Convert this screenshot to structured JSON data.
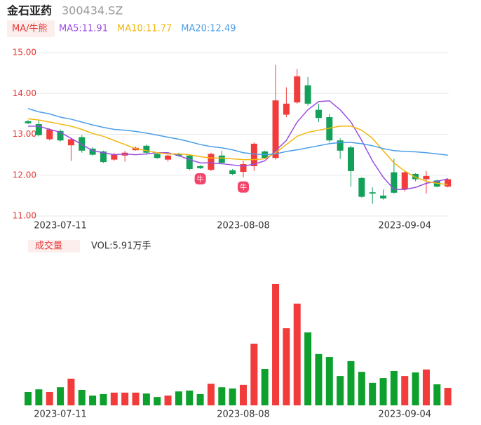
{
  "header": {
    "name": "金石亚药",
    "code": "300434.SZ"
  },
  "chart_data": [
    {
      "type": "candlestick",
      "legend_button": "MA/牛熊",
      "categories": [
        null,
        null,
        null,
        "2023-07-11",
        null,
        null,
        null,
        null,
        null,
        null,
        null,
        null,
        null,
        null,
        null,
        null,
        null,
        null,
        null,
        null,
        "2023-08-08",
        null,
        null,
        null,
        null,
        null,
        null,
        null,
        null,
        null,
        null,
        null,
        null,
        null,
        null,
        "2023-09-04",
        null,
        null,
        null,
        null
      ],
      "open": [
        13.32,
        13.25,
        12.88,
        13.08,
        12.73,
        12.93,
        12.65,
        12.58,
        12.38,
        12.48,
        12.61,
        12.72,
        12.52,
        12.38,
        12.52,
        12.48,
        12.22,
        12.13,
        12.48,
        12.12,
        12.08,
        12.22,
        12.58,
        12.42,
        13.48,
        13.78,
        14.2,
        13.6,
        13.42,
        12.85,
        12.68,
        11.93,
        11.58,
        11.5,
        12.07,
        11.65,
        12.03,
        11.9,
        11.87,
        11.72
      ],
      "high": [
        13.35,
        13.35,
        13.15,
        13.12,
        12.9,
        12.98,
        12.68,
        12.6,
        12.55,
        12.6,
        12.7,
        12.75,
        12.55,
        12.5,
        12.55,
        12.5,
        12.25,
        12.55,
        12.6,
        12.15,
        12.35,
        12.8,
        12.6,
        14.7,
        14.15,
        14.6,
        14.4,
        13.75,
        13.5,
        12.9,
        12.72,
        11.95,
        11.7,
        11.65,
        12.4,
        12.1,
        12.05,
        12.1,
        11.9,
        11.92
      ],
      "low": [
        13.25,
        12.95,
        12.85,
        12.82,
        12.35,
        12.55,
        12.48,
        12.3,
        12.35,
        12.33,
        12.6,
        12.5,
        12.4,
        12.33,
        12.45,
        12.12,
        12.15,
        12.1,
        12.28,
        12.0,
        11.95,
        12.1,
        12.4,
        12.38,
        13.42,
        13.75,
        13.7,
        13.3,
        12.8,
        12.4,
        11.72,
        11.45,
        11.3,
        11.4,
        11.55,
        11.6,
        11.85,
        11.55,
        11.7,
        11.7
      ],
      "close": [
        13.27,
        12.98,
        13.12,
        12.85,
        12.88,
        12.6,
        12.5,
        12.32,
        12.5,
        12.55,
        12.67,
        12.55,
        12.42,
        12.48,
        12.47,
        12.15,
        12.17,
        12.52,
        12.3,
        12.03,
        12.27,
        12.77,
        12.42,
        13.83,
        13.75,
        14.42,
        13.75,
        13.4,
        12.85,
        12.6,
        12.1,
        11.47,
        11.55,
        11.43,
        11.57,
        12.07,
        11.9,
        11.98,
        11.72,
        11.9
      ],
      "up_color": "#f23b3b",
      "down_color": "#13a05a",
      "series": [
        {
          "name": "MA5:11.91",
          "color": "#9b4de2",
          "values": [
            13.2,
            13.2,
            13.12,
            13.05,
            12.9,
            12.75,
            12.6,
            12.55,
            12.5,
            12.52,
            12.5,
            12.52,
            12.55,
            12.55,
            12.48,
            12.38,
            12.3,
            12.3,
            12.28,
            12.25,
            12.22,
            12.27,
            12.35,
            12.6,
            12.85,
            13.3,
            13.6,
            13.8,
            13.82,
            13.6,
            13.3,
            12.85,
            12.35,
            11.95,
            11.65,
            11.65,
            11.7,
            11.8,
            11.85,
            11.91
          ]
        },
        {
          "name": "MA10:11.77",
          "color": "#f2b70f",
          "values": [
            13.38,
            13.35,
            13.3,
            13.25,
            13.2,
            13.12,
            13.02,
            12.95,
            12.85,
            12.75,
            12.65,
            12.6,
            12.55,
            12.52,
            12.52,
            12.5,
            12.45,
            12.42,
            12.42,
            12.4,
            12.38,
            12.38,
            12.4,
            12.55,
            12.75,
            12.95,
            13.05,
            13.1,
            13.15,
            13.2,
            13.2,
            13.1,
            12.9,
            12.6,
            12.3,
            12.1,
            11.95,
            11.85,
            11.8,
            11.77
          ]
        },
        {
          "name": "MA20:12.49",
          "color": "#4a9ee8",
          "values": [
            13.63,
            13.55,
            13.5,
            13.42,
            13.37,
            13.3,
            13.23,
            13.17,
            13.12,
            13.1,
            13.07,
            13.03,
            12.98,
            12.93,
            12.88,
            12.82,
            12.75,
            12.7,
            12.67,
            12.62,
            12.55,
            12.52,
            12.5,
            12.52,
            12.58,
            12.62,
            12.67,
            12.72,
            12.77,
            12.8,
            12.8,
            12.77,
            12.72,
            12.65,
            12.6,
            12.58,
            12.57,
            12.55,
            12.52,
            12.49
          ]
        }
      ],
      "ylim": [
        11,
        15
      ],
      "yticks": [
        {
          "value": 11,
          "label": "11.00"
        },
        {
          "value": 12,
          "label": "12.00"
        },
        {
          "value": 13,
          "label": "13.00"
        },
        {
          "value": 14,
          "label": "14.00"
        },
        {
          "value": 15,
          "label": "15.00"
        }
      ],
      "grid": true,
      "annotations": [
        {
          "index": 16,
          "label": "牛"
        },
        {
          "index": 20,
          "label": "牛"
        }
      ]
    },
    {
      "type": "volume",
      "title": "成交量",
      "subtitle": "VOL:5.91万手",
      "categories": [
        null,
        null,
        null,
        "2023-07-11",
        null,
        null,
        null,
        null,
        null,
        null,
        null,
        null,
        null,
        null,
        null,
        null,
        null,
        null,
        null,
        null,
        "2023-08-08",
        null,
        null,
        null,
        null,
        null,
        null,
        null,
        null,
        null,
        null,
        null,
        null,
        null,
        null,
        "2023-09-04",
        null,
        null,
        null,
        null
      ],
      "values": [
        4.5,
        5.4,
        4.5,
        6.1,
        9.0,
        5.2,
        3.3,
        3.8,
        4.3,
        4.3,
        4.3,
        4.0,
        2.8,
        3.3,
        4.7,
        5.0,
        3.8,
        7.3,
        6.1,
        5.7,
        6.9,
        20.8,
        12.3,
        40.9,
        26.0,
        34.3,
        24.6,
        17.3,
        16.3,
        9.9,
        14.9,
        11.3,
        7.6,
        9.2,
        11.6,
        9.9,
        11.1,
        12.1,
        7.1,
        5.91
      ]
    }
  ]
}
